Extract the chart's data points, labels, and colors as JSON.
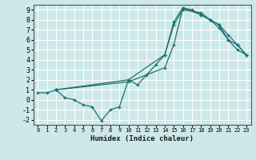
{
  "xlabel": "Humidex (Indice chaleur)",
  "xlim": [
    -0.5,
    23.5
  ],
  "ylim": [
    -2.5,
    9.5
  ],
  "xticks": [
    0,
    1,
    2,
    3,
    4,
    5,
    6,
    7,
    8,
    9,
    10,
    11,
    12,
    13,
    14,
    15,
    16,
    17,
    18,
    19,
    20,
    21,
    22,
    23
  ],
  "yticks": [
    -2,
    -1,
    0,
    1,
    2,
    3,
    4,
    5,
    6,
    7,
    8,
    9
  ],
  "bg_color": "#cce8e8",
  "grid_color": "#ffffff",
  "line_color": "#1a7070",
  "line1_x": [
    0,
    1,
    2,
    3,
    4,
    5,
    6,
    7,
    8,
    9,
    10,
    11,
    12,
    13,
    14,
    15,
    16,
    17,
    18,
    19,
    20,
    21,
    22,
    23
  ],
  "line1_y": [
    0.7,
    0.7,
    1.0,
    0.2,
    0.0,
    -0.5,
    -0.7,
    -2.1,
    -1.0,
    -0.7,
    2.0,
    1.5,
    2.5,
    3.5,
    4.5,
    7.8,
    9.2,
    9.0,
    8.5,
    8.0,
    7.5,
    6.0,
    5.0,
    4.5
  ],
  "line2_x": [
    2,
    10,
    14,
    15,
    16,
    18,
    19,
    20,
    21,
    22,
    23
  ],
  "line2_y": [
    1.0,
    2.0,
    4.5,
    7.5,
    9.0,
    8.7,
    8.0,
    7.5,
    6.5,
    5.5,
    4.5
  ],
  "line3_x": [
    2,
    10,
    14,
    15,
    16,
    18,
    19,
    20,
    21,
    22,
    23
  ],
  "line3_y": [
    1.0,
    1.8,
    3.2,
    5.5,
    9.2,
    8.5,
    8.0,
    7.2,
    6.0,
    5.5,
    4.5
  ]
}
